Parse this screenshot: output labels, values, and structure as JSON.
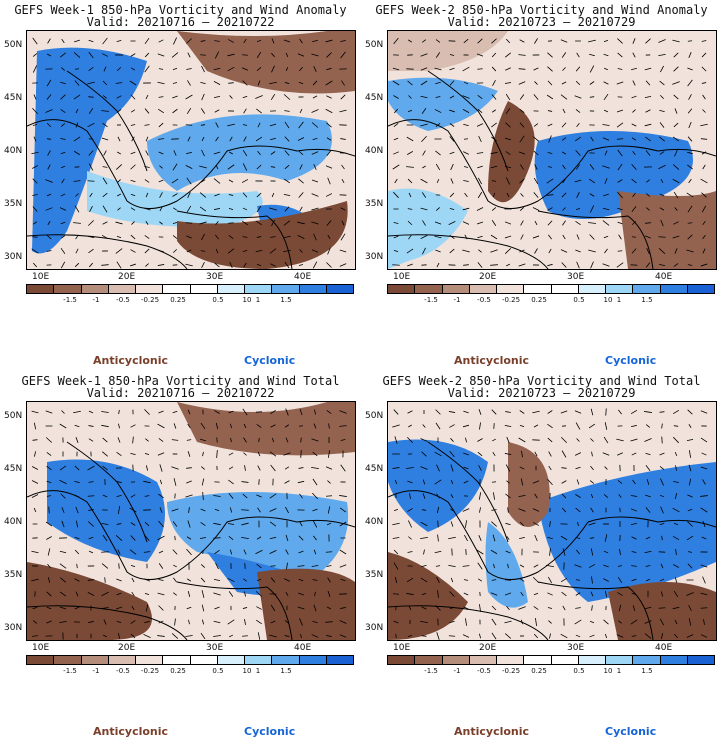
{
  "colors": {
    "anticyclonic_text": "#7a3f2a",
    "cyclonic_text": "#1565d8",
    "colorbar": [
      "#7b4a36",
      "#946350",
      "#b48d7b",
      "#d8bdb0",
      "#f1e3dc",
      "#ffffff",
      "#ffffff",
      "#d7f0fb",
      "#9ed7f5",
      "#5fa9ec",
      "#2f7fe0",
      "#1a62d4"
    ]
  },
  "colorbar_labels": [
    "-1.5",
    "-1",
    "-0.5",
    "-0.25",
    "0.25",
    "0.5",
    "1",
    "1.5"
  ],
  "colorbar_extra": "10",
  "legend": {
    "anticyclonic": "Anticyclonic",
    "cyclonic": "Cyclonic"
  },
  "axes": {
    "y": [
      "50N",
      "45N",
      "40N",
      "35N",
      "30N"
    ],
    "x": [
      "10E",
      "20E",
      "30E",
      "40E"
    ]
  },
  "panels": [
    {
      "title": "GEFS Week-1 850-hPa Vorticity and Wind Anomaly",
      "valid": "Valid: 20210716 – 20210722"
    },
    {
      "title": "GEFS Week-2 850-hPa Vorticity and Wind Anomaly",
      "valid": "Valid: 20210723 – 20210729"
    },
    {
      "title": "GEFS Week-1 850-hPa Vorticity and Wind Total",
      "valid": "Valid: 20210716 – 20210722"
    },
    {
      "title": "GEFS Week-2 850-hPa Vorticity and Wind Total",
      "valid": "Valid: 20210723 – 20210729"
    }
  ]
}
